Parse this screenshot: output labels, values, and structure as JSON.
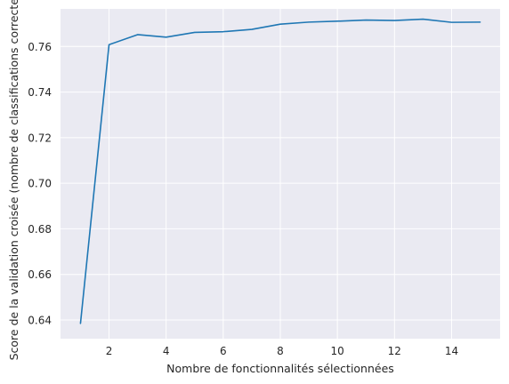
{
  "chart_data": {
    "type": "line",
    "title": "",
    "xlabel": "Nombre de fonctionnalités sélectionnées",
    "ylabel": "Score de la validation croisée (nombre de classifications correctes)",
    "xlim": [
      0.3,
      15.7
    ],
    "ylim": [
      0.6318,
      0.7765
    ],
    "xticks": [
      2,
      4,
      6,
      8,
      10,
      12,
      14
    ],
    "yticks": [
      0.64,
      0.66,
      0.68,
      0.7,
      0.72,
      0.74,
      0.76
    ],
    "xtick_labels": [
      "2",
      "4",
      "6",
      "8",
      "10",
      "12",
      "14"
    ],
    "ytick_labels": [
      "0.64",
      "0.66",
      "0.68",
      "0.70",
      "0.72",
      "0.74",
      "0.76"
    ],
    "grid": true,
    "background_color": "#eaeaf2",
    "grid_color": "#ffffff",
    "series": [
      {
        "color": "#1f77b4",
        "x": [
          1,
          2,
          3,
          4,
          5,
          6,
          7,
          8,
          9,
          10,
          11,
          12,
          13,
          14,
          15
        ],
        "values": [
          0.6385,
          0.7608,
          0.7652,
          0.7641,
          0.7662,
          0.7665,
          0.7675,
          0.7698,
          0.7707,
          0.7711,
          0.7716,
          0.7714,
          0.772,
          0.7706,
          0.7707
        ]
      }
    ]
  }
}
